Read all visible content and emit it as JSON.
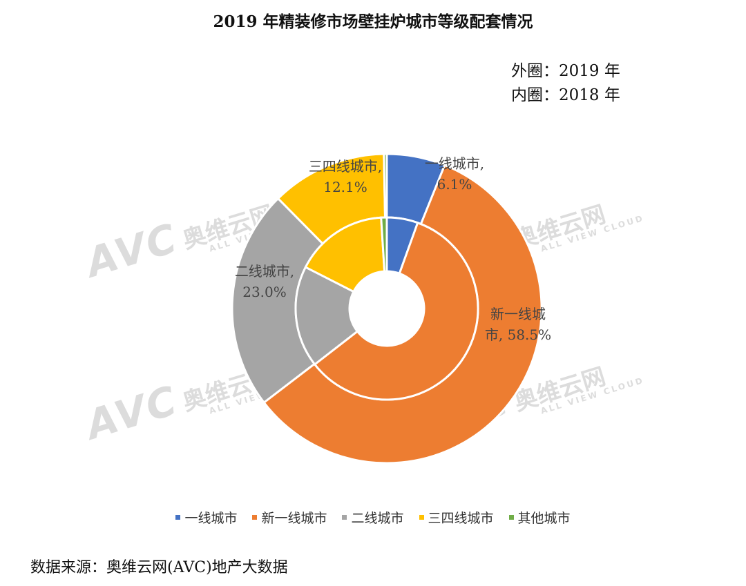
{
  "title": "2019 年精装修市场壁挂炉城市等级配套情况",
  "ring_notes": {
    "outer": "外圈：2019 年",
    "inner": "内圈：2018 年"
  },
  "source": "数据来源：奥维云网(AVC)地产大数据",
  "watermark": {
    "brand": "AVC",
    "cn": "奥维云网",
    "en": "ALL VIEW CLOUD"
  },
  "chart_data": {
    "type": "pie",
    "variant": "nested-donut",
    "categories": [
      "一线城市",
      "新一线城市",
      "二线城市",
      "三四线城市",
      "其他城市"
    ],
    "colors": [
      "#4472C4",
      "#ED7D31",
      "#A5A5A5",
      "#FFC000",
      "#70AD47"
    ],
    "series": [
      {
        "name": "外圈：2019 年",
        "ring": "outer",
        "values": [
          6.1,
          58.5,
          23.0,
          12.1,
          0.3
        ]
      },
      {
        "name": "内圈：2018 年",
        "ring": "inner",
        "values": [
          5.5,
          59.0,
          18.0,
          16.5,
          1.0
        ]
      }
    ],
    "data_labels": [
      {
        "category": "三四线城市",
        "line1": "三四线城市,",
        "line2": "12.1%"
      },
      {
        "category": "一线城市",
        "line1": "一线城市,",
        "line2": "6.1%"
      },
      {
        "category": "二线城市",
        "line1": "二线城市,",
        "line2": "23.0%"
      },
      {
        "category": "新一线城市",
        "line1": "新一线城",
        "line2": "市, 58.5%"
      }
    ],
    "legend_position": "bottom"
  }
}
